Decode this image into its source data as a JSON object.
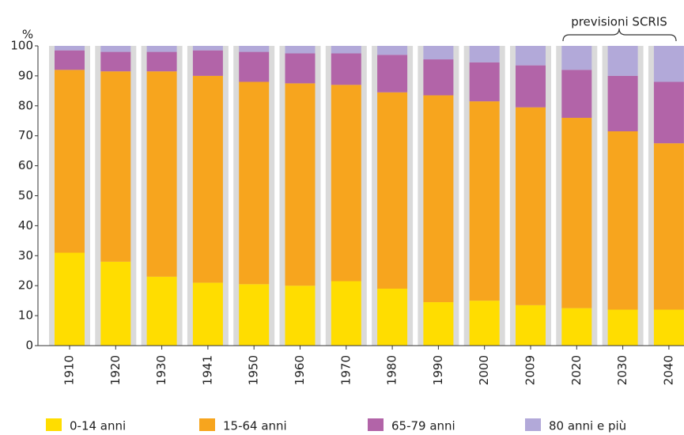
{
  "chart_data": {
    "type": "stacked-bar",
    "y_label": "%",
    "annotation": "previsioni SCRIS",
    "categories": [
      "1910",
      "1920",
      "1930",
      "1941",
      "1950",
      "1960",
      "1970",
      "1980",
      "1990",
      "2000",
      "2009",
      "2020",
      "2030",
      "2040"
    ],
    "series": [
      {
        "name": "0-14 anni",
        "color": "#ffdd00",
        "values": [
          31,
          28,
          23,
          21,
          20.5,
          20,
          21.5,
          19,
          14.5,
          15,
          13.5,
          12.5,
          12,
          12
        ]
      },
      {
        "name": "15-64 anni",
        "color": "#f7a51e",
        "values": [
          61,
          63.5,
          68.5,
          69,
          67.5,
          67.5,
          65.5,
          65.5,
          69,
          66.5,
          66,
          63.5,
          59.5,
          55.5
        ]
      },
      {
        "name": "65-79 anni",
        "color": "#b264a8",
        "values": [
          6.5,
          6.5,
          6.5,
          8.5,
          10,
          10,
          10.5,
          12.5,
          12,
          13,
          14,
          16,
          18.5,
          20.5
        ]
      },
      {
        "name": "80 anni e più",
        "color": "#b2a9d9",
        "values": [
          1.5,
          2,
          2,
          1.5,
          2,
          2.5,
          2.5,
          3,
          4.5,
          5.5,
          6.5,
          8,
          10,
          12
        ]
      }
    ],
    "ylim": [
      0,
      100
    ],
    "yticks": [
      0,
      10,
      20,
      30,
      40,
      50,
      60,
      70,
      80,
      90,
      100
    ]
  }
}
